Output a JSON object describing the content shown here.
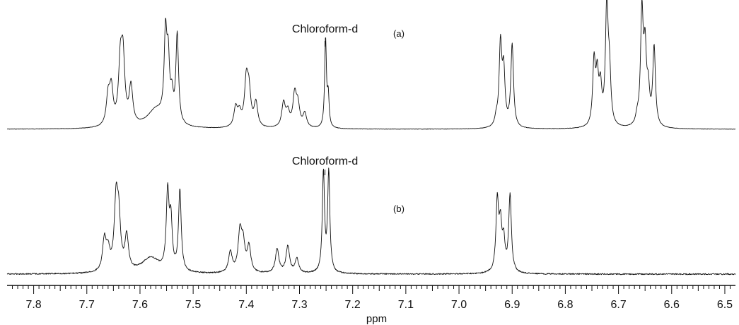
{
  "chart_data": [
    {
      "type": "line",
      "panel_label": "(a)",
      "annotation": "Chloroform-d",
      "annotation_ppm": 7.26,
      "series": [
        {
          "baseline": 0,
          "peaks": [
            {
              "ppm": 7.654,
              "height": 0.28,
              "width": 0.004
            },
            {
              "ppm": 7.66,
              "height": 0.22,
              "width": 0.004
            },
            {
              "ppm": 7.637,
              "height": 0.45,
              "width": 0.004
            },
            {
              "ppm": 7.632,
              "height": 0.5,
              "width": 0.004
            },
            {
              "ppm": 7.617,
              "height": 0.3,
              "width": 0.004
            },
            {
              "ppm": 7.57,
              "height": 0.14,
              "width": 0.02
            },
            {
              "ppm": 7.552,
              "height": 0.65,
              "width": 0.003
            },
            {
              "ppm": 7.547,
              "height": 0.45,
              "width": 0.003
            },
            {
              "ppm": 7.54,
              "height": 0.18,
              "width": 0.003
            },
            {
              "ppm": 7.53,
              "height": 0.7,
              "width": 0.003
            },
            {
              "ppm": 7.42,
              "height": 0.15,
              "width": 0.004
            },
            {
              "ppm": 7.413,
              "height": 0.1,
              "width": 0.004
            },
            {
              "ppm": 7.4,
              "height": 0.35,
              "width": 0.004
            },
            {
              "ppm": 7.395,
              "height": 0.25,
              "width": 0.004
            },
            {
              "ppm": 7.382,
              "height": 0.19,
              "width": 0.004
            },
            {
              "ppm": 7.33,
              "height": 0.19,
              "width": 0.004
            },
            {
              "ppm": 7.322,
              "height": 0.11,
              "width": 0.004
            },
            {
              "ppm": 7.309,
              "height": 0.25,
              "width": 0.004
            },
            {
              "ppm": 7.303,
              "height": 0.16,
              "width": 0.004
            },
            {
              "ppm": 7.29,
              "height": 0.11,
              "width": 0.004
            },
            {
              "ppm": 7.251,
              "height": 0.7,
              "width": 0.002
            },
            {
              "ppm": 7.246,
              "height": 0.24,
              "width": 0.002
            },
            {
              "ppm": 6.922,
              "height": 0.64,
              "width": 0.003
            },
            {
              "ppm": 6.916,
              "height": 0.42,
              "width": 0.003
            },
            {
              "ppm": 6.9,
              "height": 0.65,
              "width": 0.003
            },
            {
              "ppm": 6.93,
              "height": 0.06,
              "width": 0.003
            },
            {
              "ppm": 6.746,
              "height": 0.5,
              "width": 0.003
            },
            {
              "ppm": 6.74,
              "height": 0.36,
              "width": 0.003
            },
            {
              "ppm": 6.734,
              "height": 0.28,
              "width": 0.003
            },
            {
              "ppm": 6.722,
              "height": 0.95,
              "width": 0.003
            },
            {
              "ppm": 6.717,
              "height": 0.38,
              "width": 0.003
            },
            {
              "ppm": 6.656,
              "height": 0.88,
              "width": 0.003
            },
            {
              "ppm": 6.65,
              "height": 0.55,
              "width": 0.003
            },
            {
              "ppm": 6.644,
              "height": 0.25,
              "width": 0.003
            },
            {
              "ppm": 6.633,
              "height": 0.62,
              "width": 0.003
            },
            {
              "ppm": 6.665,
              "height": 0.06,
              "width": 0.003
            }
          ]
        }
      ]
    },
    {
      "type": "line",
      "panel_label": "(b)",
      "annotation": "Chloroform-d",
      "annotation_ppm": 7.26,
      "series": [
        {
          "baseline": 0,
          "peaks": [
            {
              "ppm": 7.667,
              "height": 0.33,
              "width": 0.004
            },
            {
              "ppm": 7.66,
              "height": 0.2,
              "width": 0.004
            },
            {
              "ppm": 7.645,
              "height": 0.7,
              "width": 0.004
            },
            {
              "ppm": 7.64,
              "height": 0.5,
              "width": 0.004
            },
            {
              "ppm": 7.625,
              "height": 0.36,
              "width": 0.004
            },
            {
              "ppm": 7.58,
              "height": 0.16,
              "width": 0.02
            },
            {
              "ppm": 7.548,
              "height": 0.8,
              "width": 0.003
            },
            {
              "ppm": 7.542,
              "height": 0.5,
              "width": 0.003
            },
            {
              "ppm": 7.525,
              "height": 0.85,
              "width": 0.003
            },
            {
              "ppm": 7.43,
              "height": 0.22,
              "width": 0.004
            },
            {
              "ppm": 7.412,
              "height": 0.41,
              "width": 0.004
            },
            {
              "ppm": 7.406,
              "height": 0.28,
              "width": 0.004
            },
            {
              "ppm": 7.395,
              "height": 0.27,
              "width": 0.004
            },
            {
              "ppm": 7.342,
              "height": 0.25,
              "width": 0.004
            },
            {
              "ppm": 7.322,
              "height": 0.28,
              "width": 0.004
            },
            {
              "ppm": 7.305,
              "height": 0.15,
              "width": 0.004
            },
            {
              "ppm": 7.255,
              "height": 1.05,
              "width": 0.0025
            },
            {
              "ppm": 7.245,
              "height": 1.05,
              "width": 0.0025
            },
            {
              "ppm": 6.928,
              "height": 0.73,
              "width": 0.003
            },
            {
              "ppm": 6.922,
              "height": 0.45,
              "width": 0.003
            },
            {
              "ppm": 6.916,
              "height": 0.3,
              "width": 0.003
            },
            {
              "ppm": 6.904,
              "height": 0.81,
              "width": 0.003
            }
          ]
        }
      ]
    }
  ],
  "axis": {
    "xlabel": "ppm",
    "xlim": [
      7.85,
      6.48
    ],
    "major_ticks": [
      7.8,
      7.7,
      7.6,
      7.5,
      7.4,
      7.3,
      7.2,
      7.1,
      7.0,
      6.9,
      6.8,
      6.7,
      6.6,
      6.5
    ],
    "tick_labels": [
      "7.8",
      "7.7",
      "7.6",
      "7.5",
      "7.4",
      "7.3",
      "7.2",
      "7.1",
      "7.0",
      "6.9",
      "6.8",
      "6.7",
      "6.6",
      "6.5"
    ],
    "minor_tick_step": 0.01,
    "reversed": true
  }
}
